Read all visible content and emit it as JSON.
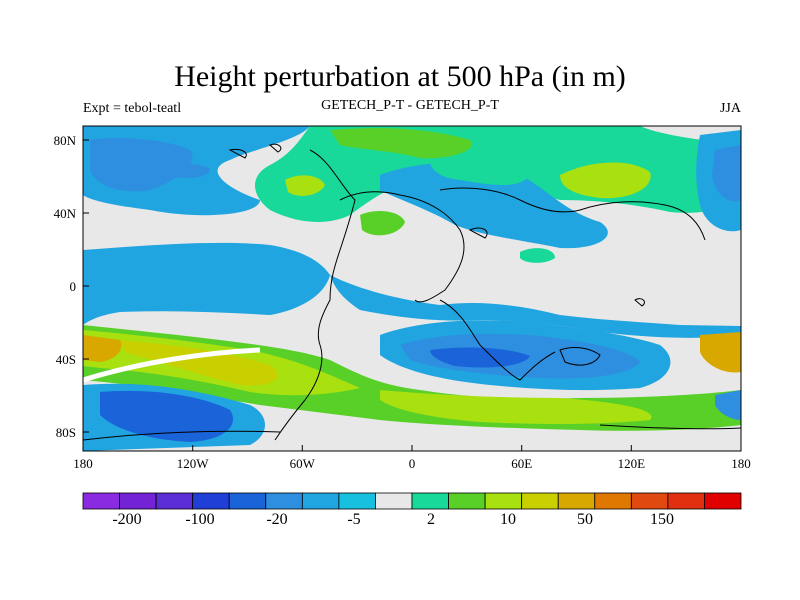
{
  "title": "Height perturbation at 500 hPa (in m)",
  "subtitle_left": "Expt = tebol-teatl",
  "subtitle_center": "GETECH_P-T - GETECH_P-T",
  "subtitle_right": "JJA",
  "axes": {
    "x_ticks": [
      "180",
      "120W",
      "60W",
      "0",
      "60E",
      "120E",
      "180"
    ],
    "y_ticks": [
      "80N",
      "40N",
      "0",
      "40S",
      "80S"
    ]
  },
  "colorbar": {
    "colors": [
      "#8a2be2",
      "#7422d6",
      "#5a2dd6",
      "#1f3fd6",
      "#1a63d9",
      "#2e8ee0",
      "#20a5e0",
      "#18c0e0",
      "#e8e8e8",
      "#18d89a",
      "#58d028",
      "#a8e010",
      "#c8d000",
      "#d8a800",
      "#e07800",
      "#e04a10",
      "#e03010",
      "#e00000"
    ],
    "labels": [
      "-200",
      "-100",
      "-20",
      "-5",
      "2",
      "10",
      "50",
      "150"
    ]
  },
  "map_colors": {
    "background": "#e8e8e8",
    "light_blue": "#20a5e0",
    "mid_blue": "#2e8ee0",
    "blue": "#1a63d9",
    "cyan": "#18c0e0",
    "green_teal": "#18d89a",
    "green": "#58d028",
    "yellow_green": "#a8e010",
    "olive": "#c8d000",
    "orange": "#d8a800",
    "coast": "#000000"
  }
}
